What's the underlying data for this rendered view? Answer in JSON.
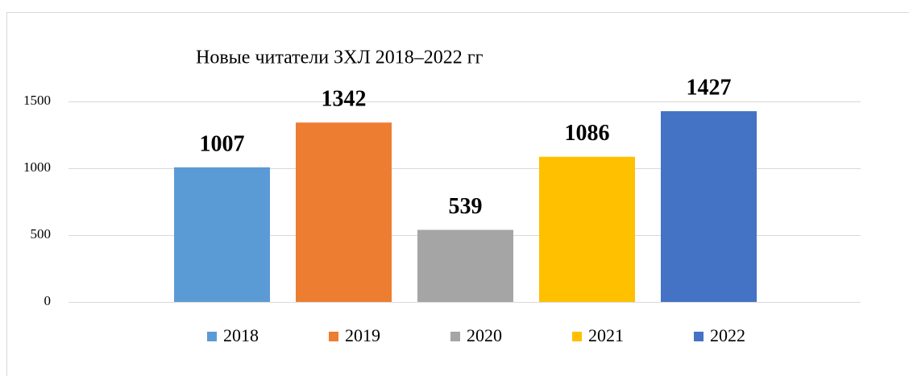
{
  "chart_data": {
    "type": "bar",
    "title": "Новые читатели ЗХЛ 2018–2022 гг",
    "series": [
      {
        "name": "2018",
        "color": "#5b9bd5",
        "values": [
          1007
        ]
      },
      {
        "name": "2019",
        "color": "#ed7d31",
        "values": [
          1342
        ]
      },
      {
        "name": "2020",
        "color": "#a5a5a5",
        "values": [
          539
        ]
      },
      {
        "name": "2021",
        "color": "#ffc000",
        "values": [
          1086
        ]
      },
      {
        "name": "2022",
        "color": "#4472c4",
        "values": [
          1427
        ]
      }
    ],
    "ylim": [
      0,
      1500
    ],
    "yticks": [
      0,
      500,
      1000,
      1500
    ],
    "grid": true,
    "legend": "bottom"
  }
}
